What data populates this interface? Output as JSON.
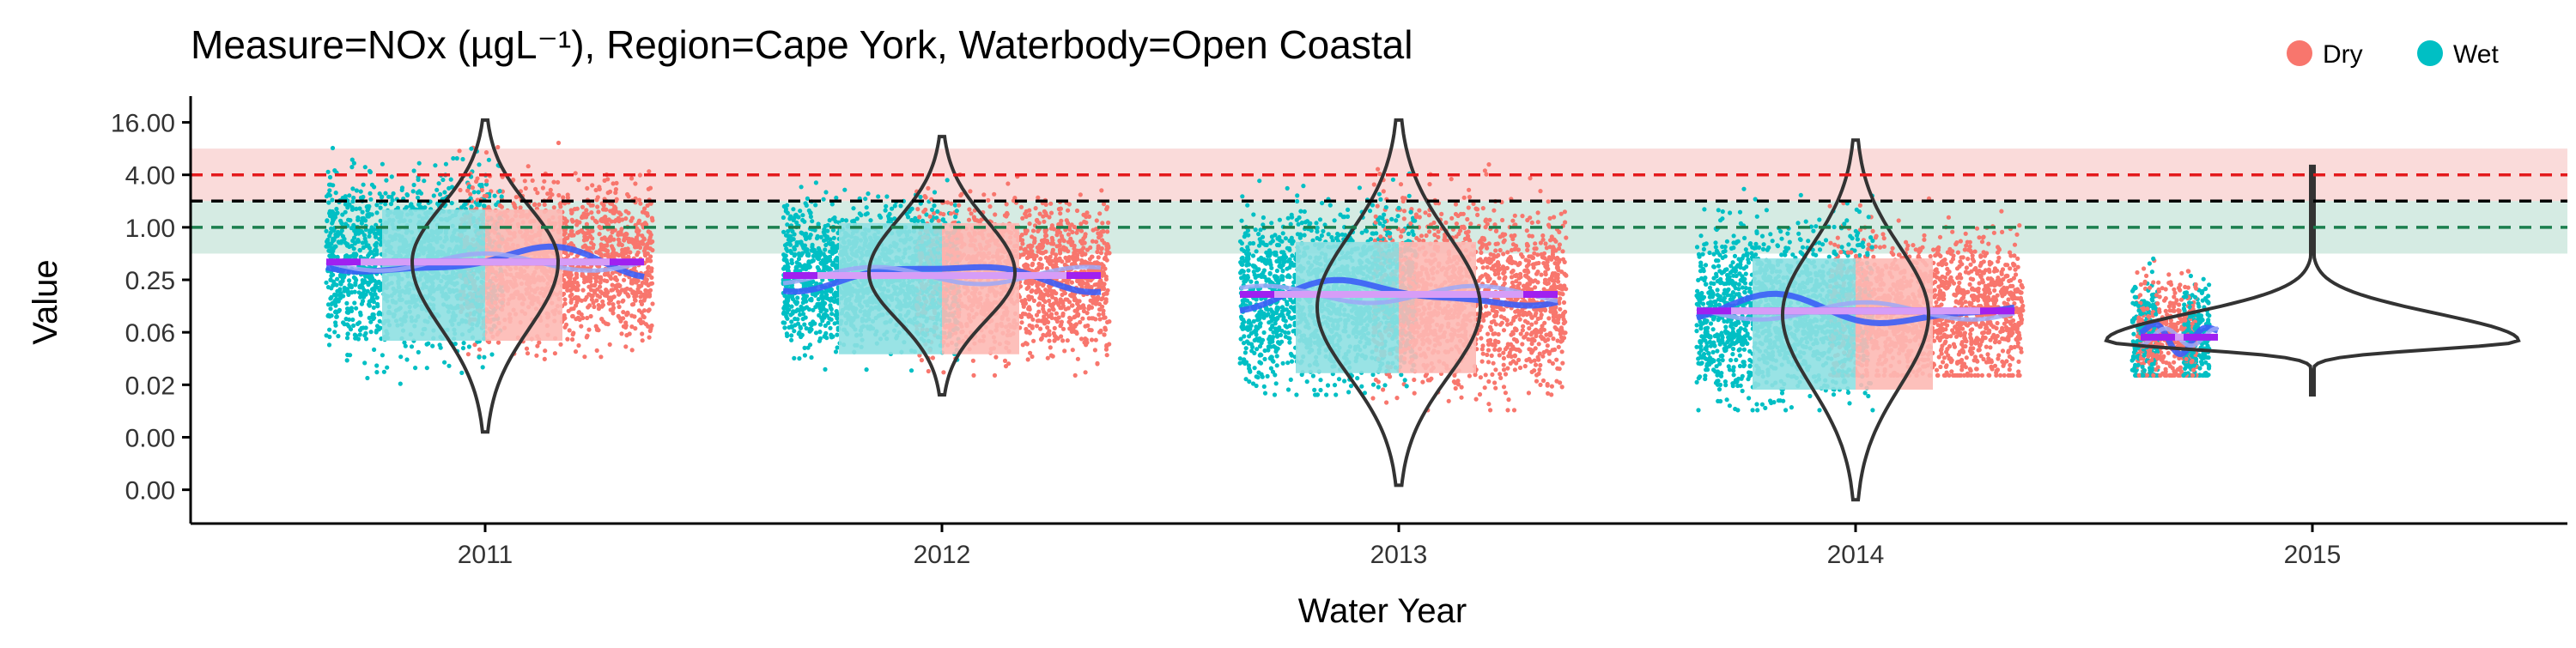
{
  "chart_data": {
    "type": "scatter",
    "title": "Measure=NOx (µgL⁻¹), Region=Cape York, Waterbody=Open Coastal",
    "xlabel": "Water Year",
    "ylabel": "Value",
    "y_scale": "log",
    "x_categories": [
      "2011",
      "2012",
      "2013",
      "2014",
      "2015"
    ],
    "y_ticks": [
      {
        "label": "16.00",
        "value": 16
      },
      {
        "label": "4.00",
        "value": 4
      },
      {
        "label": "1.00",
        "value": 1
      },
      {
        "label": "0.25",
        "value": 0.25
      },
      {
        "label": "0.06",
        "value": 0.0625
      },
      {
        "label": "0.02",
        "value": 0.015625
      },
      {
        "label": "0.00",
        "value": 0.00390625
      },
      {
        "label": "0.00",
        "value": 0.0009765625
      }
    ],
    "legend": {
      "position": "top-right",
      "items": [
        {
          "label": "Dry",
          "color": "#F8766D"
        },
        {
          "label": "Wet",
          "color": "#00BFC4"
        }
      ]
    },
    "reference_lines": [
      {
        "value": 4.0,
        "color": "#E41A1C",
        "style": "dashed"
      },
      {
        "value": 2.0,
        "color": "#000000",
        "style": "dashed"
      },
      {
        "value": 1.0,
        "color": "#1B7F4E",
        "style": "dashed"
      }
    ],
    "reference_bands": [
      {
        "from": 2.0,
        "to": 8.0,
        "color": "#FADBDA"
      },
      {
        "from": 0.5,
        "to": 2.0,
        "color": "#D5EBE3"
      }
    ],
    "colors": {
      "dry": "#F8766D",
      "wet": "#00BFC4",
      "dry_light": "#FDB9B4",
      "wet_light": "#8EE0E2",
      "trend": "#3B5EF7",
      "median": "#A020F0",
      "median_light": "#D69DF7"
    },
    "series": [
      {
        "year": "2011",
        "wet_range": [
          0.015,
          16
        ],
        "dry_range": [
          0.02,
          13
        ],
        "median": 0.4,
        "violin_range": [
          0.0045,
          17
        ],
        "violin_peak": 0.4
      },
      {
        "year": "2012",
        "wet_range": [
          0.015,
          5
        ],
        "dry_range": [
          0.02,
          9
        ],
        "median": 0.28,
        "violin_range": [
          0.012,
          11
        ],
        "violin_peak": 0.3
      },
      {
        "year": "2013",
        "wet_range": [
          0.012,
          13
        ],
        "dry_range": [
          0.008,
          11
        ],
        "median": 0.17,
        "violin_range": [
          0.0011,
          17
        ],
        "violin_peak": 0.12
      },
      {
        "year": "2014",
        "wet_range": [
          0.008,
          7
        ],
        "dry_range": [
          0.02,
          9
        ],
        "median": 0.11,
        "violin_range": [
          0.00075,
          10
        ],
        "violin_peak": 0.1
      },
      {
        "year": "2015",
        "wet_range": [
          0.02,
          2.5
        ],
        "dry_range": [
          0.02,
          2
        ],
        "median": 0.055,
        "violin_range": [
          0.012,
          5
        ],
        "violin_peak": 0.05
      }
    ]
  }
}
